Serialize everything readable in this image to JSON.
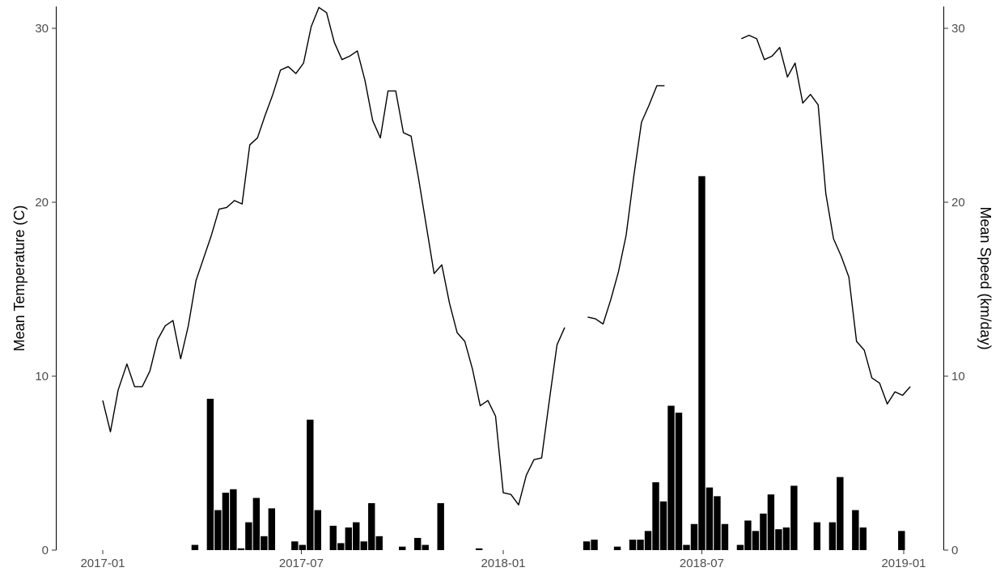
{
  "chart_data": {
    "type": "bar+line",
    "title": "",
    "xlabel": "",
    "ylabel_left": "Mean Temperature (C)",
    "ylabel_right": "Mean Speed (km/day)",
    "ylim": [
      0,
      31.2
    ],
    "x_ticks": [
      "2017-01",
      "2017-07",
      "2018-01",
      "2018-07",
      "2019-01"
    ],
    "y_ticks": [
      "0",
      "10",
      "20",
      "30"
    ],
    "grid": false,
    "legend": "none",
    "colors": {
      "line": "#000000",
      "bars": "#000000"
    },
    "temperature_segments": [
      [
        [
          "2017-01-01",
          8.6
        ],
        [
          "2017-01-08",
          6.8
        ],
        [
          "2017-01-15",
          9.2
        ],
        [
          "2017-01-23",
          10.7
        ],
        [
          "2017-01-30",
          9.4
        ],
        [
          "2017-02-06",
          9.4
        ],
        [
          "2017-02-13",
          10.3
        ],
        [
          "2017-02-20",
          12.1
        ],
        [
          "2017-02-27",
          12.9
        ],
        [
          "2017-03-06",
          13.2
        ],
        [
          "2017-03-13",
          11.0
        ],
        [
          "2017-03-20",
          12.9
        ],
        [
          "2017-03-27",
          15.5
        ],
        [
          "2017-04-03",
          16.8
        ],
        [
          "2017-04-10",
          18.1
        ],
        [
          "2017-04-17",
          19.6
        ],
        [
          "2017-04-24",
          19.7
        ],
        [
          "2017-05-01",
          20.1
        ],
        [
          "2017-05-08",
          19.9
        ],
        [
          "2017-05-15",
          23.3
        ],
        [
          "2017-05-22",
          23.7
        ],
        [
          "2017-05-29",
          25.0
        ],
        [
          "2017-06-05",
          26.2
        ],
        [
          "2017-06-12",
          27.6
        ],
        [
          "2017-06-19",
          27.8
        ],
        [
          "2017-06-26",
          27.4
        ],
        [
          "2017-07-03",
          28.0
        ],
        [
          "2017-07-10",
          30.1
        ],
        [
          "2017-07-17",
          31.2
        ],
        [
          "2017-07-24",
          30.9
        ],
        [
          "2017-07-31",
          29.2
        ],
        [
          "2017-08-07",
          28.2
        ],
        [
          "2017-08-14",
          28.4
        ],
        [
          "2017-08-21",
          28.7
        ],
        [
          "2017-08-28",
          27.0
        ],
        [
          "2017-09-04",
          24.7
        ],
        [
          "2017-09-11",
          23.7
        ],
        [
          "2017-09-18",
          26.4
        ],
        [
          "2017-09-25",
          26.4
        ],
        [
          "2017-10-02",
          24.0
        ],
        [
          "2017-10-09",
          23.8
        ],
        [
          "2017-10-16",
          21.3
        ],
        [
          "2017-10-23",
          18.6
        ],
        [
          "2017-10-30",
          15.9
        ],
        [
          "2017-11-06",
          16.4
        ],
        [
          "2017-11-13",
          14.2
        ],
        [
          "2017-11-20",
          12.5
        ],
        [
          "2017-11-27",
          12.0
        ],
        [
          "2017-12-04",
          10.4
        ],
        [
          "2017-12-11",
          8.3
        ],
        [
          "2017-12-18",
          8.6
        ],
        [
          "2017-12-25",
          7.7
        ],
        [
          "2018-01-01",
          3.3
        ],
        [
          "2018-01-08",
          3.2
        ],
        [
          "2018-01-15",
          2.6
        ],
        [
          "2018-01-22",
          4.3
        ],
        [
          "2018-01-29",
          5.2
        ],
        [
          "2018-02-05",
          5.3
        ],
        [
          "2018-02-12",
          8.6
        ],
        [
          "2018-02-19",
          11.8
        ],
        [
          "2018-02-26",
          12.8
        ]
      ],
      [
        [
          "2018-03-19",
          13.4
        ],
        [
          "2018-03-26",
          13.3
        ],
        [
          "2018-04-02",
          13.0
        ],
        [
          "2018-04-09",
          14.4
        ],
        [
          "2018-04-16",
          16.0
        ],
        [
          "2018-04-23",
          18.1
        ],
        [
          "2018-04-30",
          21.5
        ],
        [
          "2018-05-07",
          24.6
        ],
        [
          "2018-05-14",
          25.6
        ],
        [
          "2018-05-21",
          26.7
        ],
        [
          "2018-05-28",
          26.7
        ]
      ],
      [
        [
          "2018-08-06",
          29.4
        ],
        [
          "2018-08-13",
          29.6
        ],
        [
          "2018-08-20",
          29.4
        ],
        [
          "2018-08-27",
          28.2
        ],
        [
          "2018-09-03",
          28.4
        ],
        [
          "2018-09-10",
          28.9
        ],
        [
          "2018-09-17",
          27.2
        ],
        [
          "2018-09-24",
          28.0
        ],
        [
          "2018-10-01",
          25.7
        ],
        [
          "2018-10-08",
          26.2
        ],
        [
          "2018-10-15",
          25.6
        ],
        [
          "2018-10-22",
          20.5
        ],
        [
          "2018-10-29",
          17.9
        ],
        [
          "2018-11-05",
          16.9
        ],
        [
          "2018-11-12",
          15.7
        ],
        [
          "2018-11-19",
          12.0
        ],
        [
          "2018-11-26",
          11.5
        ],
        [
          "2018-12-03",
          9.9
        ],
        [
          "2018-12-10",
          9.6
        ],
        [
          "2018-12-17",
          8.4
        ],
        [
          "2018-12-24",
          9.1
        ],
        [
          "2018-12-31",
          8.9
        ],
        [
          "2019-01-07",
          9.4
        ]
      ]
    ],
    "speed_bars": [
      [
        "2017-03-26",
        0.3
      ],
      [
        "2017-04-09",
        8.7
      ],
      [
        "2017-04-16",
        2.3
      ],
      [
        "2017-04-23",
        3.3
      ],
      [
        "2017-04-30",
        3.5
      ],
      [
        "2017-05-07",
        0.1
      ],
      [
        "2017-05-14",
        1.6
      ],
      [
        "2017-05-21",
        3.0
      ],
      [
        "2017-05-28",
        0.8
      ],
      [
        "2017-06-04",
        2.4
      ],
      [
        "2017-06-25",
        0.5
      ],
      [
        "2017-07-02",
        0.3
      ],
      [
        "2017-07-09",
        7.5
      ],
      [
        "2017-07-16",
        2.3
      ],
      [
        "2017-07-30",
        1.4
      ],
      [
        "2017-08-06",
        0.4
      ],
      [
        "2017-08-13",
        1.3
      ],
      [
        "2017-08-20",
        1.6
      ],
      [
        "2017-08-27",
        0.5
      ],
      [
        "2017-09-03",
        2.7
      ],
      [
        "2017-09-10",
        0.8
      ],
      [
        "2017-10-01",
        0.2
      ],
      [
        "2017-10-15",
        0.7
      ],
      [
        "2017-10-22",
        0.3
      ],
      [
        "2017-11-05",
        2.7
      ],
      [
        "2017-12-10",
        0.1
      ],
      [
        "2018-03-18",
        0.5
      ],
      [
        "2018-03-25",
        0.6
      ],
      [
        "2018-04-15",
        0.2
      ],
      [
        "2018-04-29",
        0.6
      ],
      [
        "2018-05-06",
        0.6
      ],
      [
        "2018-05-13",
        1.1
      ],
      [
        "2018-05-20",
        3.9
      ],
      [
        "2018-05-27",
        2.8
      ],
      [
        "2018-06-03",
        8.3
      ],
      [
        "2018-06-10",
        7.9
      ],
      [
        "2018-06-17",
        0.3
      ],
      [
        "2018-06-24",
        1.5
      ],
      [
        "2018-07-01",
        21.5
      ],
      [
        "2018-07-08",
        3.6
      ],
      [
        "2018-07-15",
        3.1
      ],
      [
        "2018-07-22",
        1.5
      ],
      [
        "2018-08-05",
        0.3
      ],
      [
        "2018-08-12",
        1.7
      ],
      [
        "2018-08-19",
        1.1
      ],
      [
        "2018-08-26",
        2.1
      ],
      [
        "2018-09-02",
        3.2
      ],
      [
        "2018-09-09",
        1.2
      ],
      [
        "2018-09-16",
        1.3
      ],
      [
        "2018-09-23",
        3.7
      ],
      [
        "2018-10-14",
        1.6
      ],
      [
        "2018-10-28",
        1.6
      ],
      [
        "2018-11-04",
        4.2
      ],
      [
        "2018-11-18",
        2.3
      ],
      [
        "2018-11-25",
        1.3
      ],
      [
        "2018-12-30",
        1.1
      ]
    ]
  }
}
